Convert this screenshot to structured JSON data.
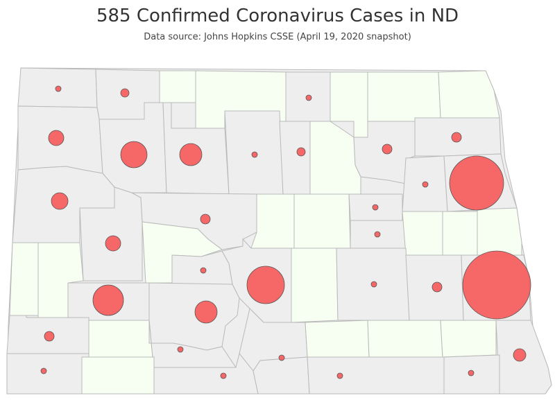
{
  "title": "585 Confirmed Coronavirus Cases in ND",
  "subtitle": "Data source: Johns Hopkins CSSE (April 19, 2020 snapshot)",
  "colors": {
    "county_with_cases": "#eeeeee",
    "county_without_cases": "#f7fff2",
    "county_border": "#b9b9b9",
    "bubble_fill": "#f55f5f",
    "bubble_stroke": "#555555"
  }
}
